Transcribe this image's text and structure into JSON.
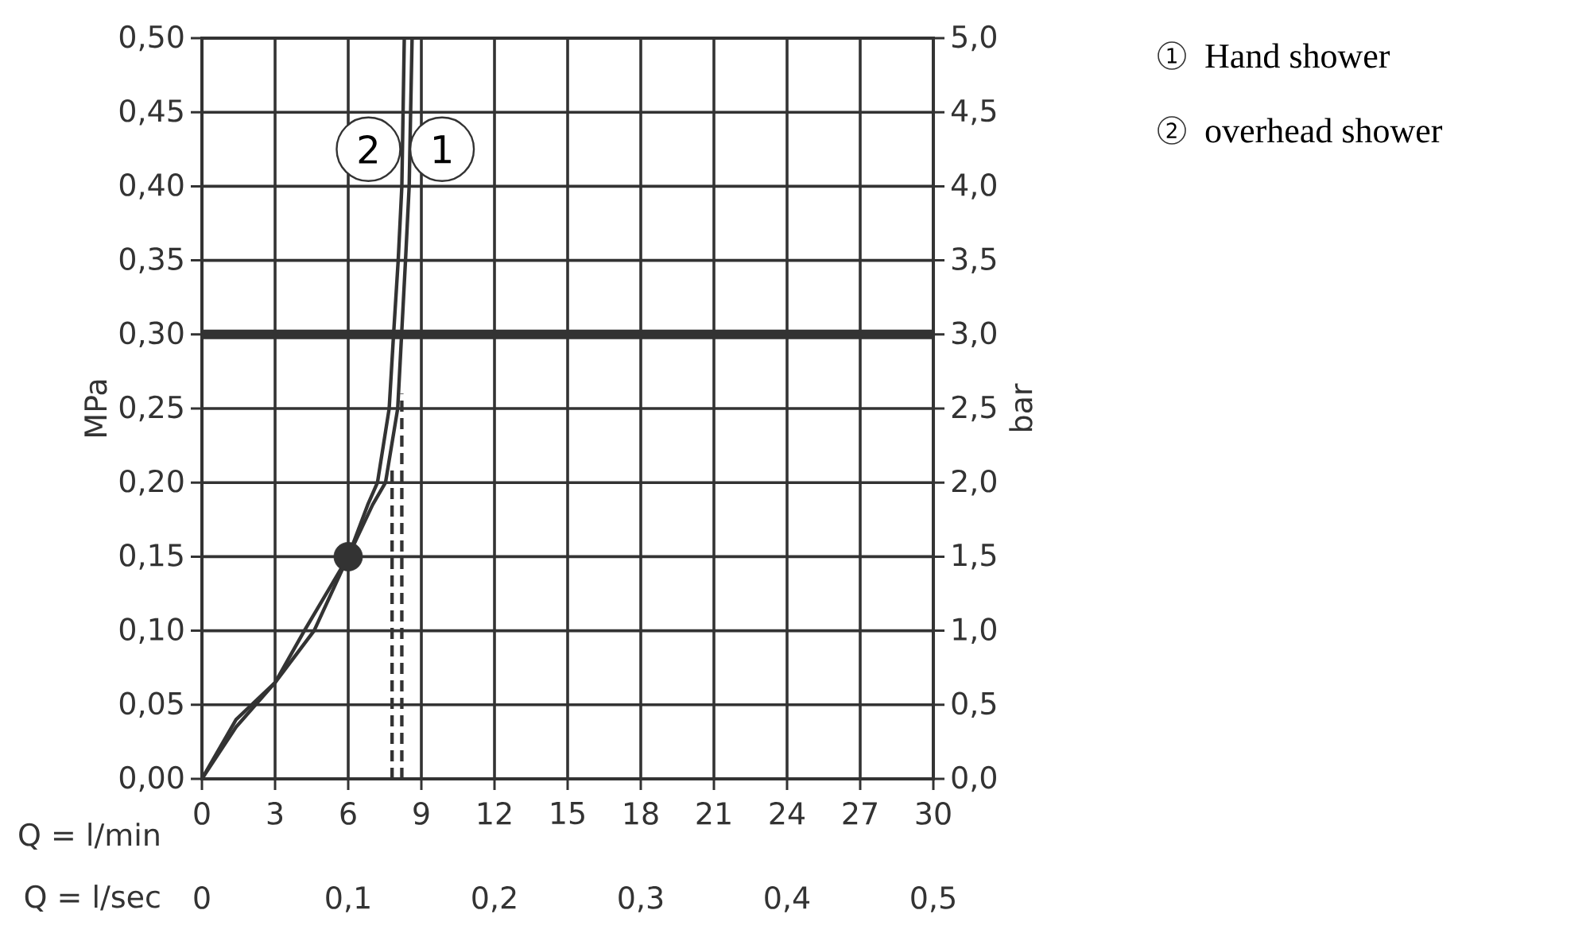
{
  "chart_data": {
    "type": "line",
    "xlabel": "Q = l/min",
    "x2label": "Q = l/sec",
    "ylabel": "MPa",
    "y2label": "bar",
    "grid": true,
    "color": "#333333",
    "xlim": [
      0,
      30
    ],
    "xticks": [
      0,
      3,
      6,
      9,
      12,
      15,
      18,
      21,
      24,
      27,
      30
    ],
    "x2lim": [
      0,
      0.5
    ],
    "x2ticks": [
      0,
      {
        "value": 0.1,
        "label": "0,1"
      },
      {
        "value": 0.2,
        "label": "0,2"
      },
      {
        "value": 0.3,
        "label": "0,3"
      },
      {
        "value": 0.4,
        "label": "0,4"
      },
      {
        "value": 0.5,
        "label": "0,5"
      }
    ],
    "ylim": [
      0,
      0.5
    ],
    "yticks": [
      {
        "value": 0,
        "label": "0,00"
      },
      {
        "value": 0.05,
        "label": "0,05"
      },
      {
        "value": 0.1,
        "label": "0,10"
      },
      {
        "value": 0.15,
        "label": "0,15"
      },
      {
        "value": 0.2,
        "label": "0,20"
      },
      {
        "value": 0.25,
        "label": "0,25"
      },
      {
        "value": 0.3,
        "label": "0,30"
      },
      {
        "value": 0.35,
        "label": "0,35"
      },
      {
        "value": 0.4,
        "label": "0,40"
      },
      {
        "value": 0.45,
        "label": "0,45"
      },
      {
        "value": 0.5,
        "label": "0,50"
      }
    ],
    "y2lim": [
      0,
      5
    ],
    "y2ticks": [
      {
        "value": 0,
        "label": "0,0"
      },
      {
        "value": 0.5,
        "label": "0,5"
      },
      {
        "value": 1,
        "label": "1,0"
      },
      {
        "value": 1.5,
        "label": "1,5"
      },
      {
        "value": 2,
        "label": "2,0"
      },
      {
        "value": 2.5,
        "label": "2,5"
      },
      {
        "value": 3,
        "label": "3,0"
      },
      {
        "value": 3.5,
        "label": "3,5"
      },
      {
        "value": 4,
        "label": "4,0"
      },
      {
        "value": 4.5,
        "label": "4,5"
      },
      {
        "value": 5,
        "label": "5,0"
      }
    ],
    "series": [
      {
        "x": [
          0,
          1.4,
          3,
          4.6,
          6,
          7,
          7.53,
          8.03,
          8.19,
          8.35,
          8.5,
          8.62
        ],
        "values": [
          0,
          0.035,
          0.065,
          0.1,
          0.15,
          0.185,
          0.2,
          0.25,
          0.3,
          0.35,
          0.4,
          0.5
        ]
      },
      {
        "x": [
          0,
          1.4,
          3,
          4.2,
          6,
          6.8,
          7.2,
          7.68,
          7.86,
          8.05,
          8.2,
          8.3
        ],
        "values": [
          0,
          0.04,
          0.065,
          0.1,
          0.15,
          0.185,
          0.2,
          0.25,
          0.3,
          0.35,
          0.4,
          0.5
        ]
      },
      {
        "type": "line",
        "line_style": "dashed",
        "x": [
          7.8,
          7.8
        ],
        "values": [
          0,
          0.21
        ]
      },
      {
        "type": "line",
        "line_style": "dashed",
        "x": [
          8.2,
          8.2
        ],
        "values": [
          0,
          0.26
        ]
      },
      {
        "type": "scatter",
        "marker": "circle",
        "x": [
          6
        ],
        "values": [
          0.15
        ]
      }
    ],
    "ref_lines": [
      {
        "axis": "y",
        "value": 0.3
      }
    ],
    "annotations": [
      {
        "text": "1",
        "x": 9.85,
        "y": 0.425
      },
      {
        "text": "2",
        "x": 6.83,
        "y": 0.425
      },
      "Hand shower",
      "overhead shower"
    ]
  }
}
